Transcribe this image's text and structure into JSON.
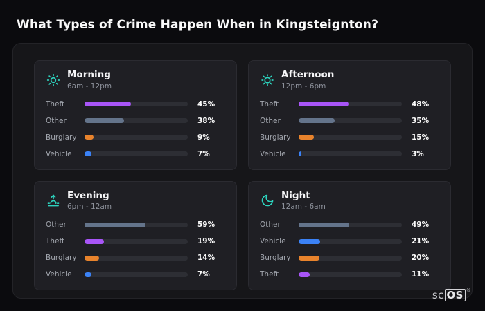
{
  "page_title": "What Types of Crime Happen When in Kingsteignton?",
  "logo": {
    "prefix": "sc",
    "box": "OS",
    "registered": "®"
  },
  "accent": {
    "icon_color": "#2dd4bf"
  },
  "chart_data": [
    {
      "type": "bar",
      "orientation": "horizontal",
      "title": "Morning",
      "subtitle": "6am - 12pm",
      "icon": "sun-rays-icon",
      "categories": [
        "Theft",
        "Other",
        "Burglary",
        "Vehicle"
      ],
      "values": [
        45,
        38,
        9,
        7
      ],
      "labels": [
        "45%",
        "38%",
        "9%",
        "7%"
      ],
      "colors": [
        "#a855f7",
        "#64748b",
        "#e8832c",
        "#3b82f6"
      ],
      "xlim": [
        0,
        100
      ],
      "unit": "%"
    },
    {
      "type": "bar",
      "orientation": "horizontal",
      "title": "Afternoon",
      "subtitle": "12pm - 6pm",
      "icon": "sun-icon",
      "categories": [
        "Theft",
        "Other",
        "Burglary",
        "Vehicle"
      ],
      "values": [
        48,
        35,
        15,
        3
      ],
      "labels": [
        "48%",
        "35%",
        "15%",
        "3%"
      ],
      "colors": [
        "#a855f7",
        "#64748b",
        "#e8832c",
        "#3b82f6"
      ],
      "xlim": [
        0,
        100
      ],
      "unit": "%"
    },
    {
      "type": "bar",
      "orientation": "horizontal",
      "title": "Evening",
      "subtitle": "6pm - 12am",
      "icon": "sunset-icon",
      "categories": [
        "Other",
        "Theft",
        "Burglary",
        "Vehicle"
      ],
      "values": [
        59,
        19,
        14,
        7
      ],
      "labels": [
        "59%",
        "19%",
        "14%",
        "7%"
      ],
      "colors": [
        "#64748b",
        "#a855f7",
        "#e8832c",
        "#3b82f6"
      ],
      "xlim": [
        0,
        100
      ],
      "unit": "%"
    },
    {
      "type": "bar",
      "orientation": "horizontal",
      "title": "Night",
      "subtitle": "12am - 6am",
      "icon": "moon-icon",
      "categories": [
        "Other",
        "Vehicle",
        "Burglary",
        "Theft"
      ],
      "values": [
        49,
        21,
        20,
        11
      ],
      "labels": [
        "49%",
        "21%",
        "20%",
        "11%"
      ],
      "colors": [
        "#64748b",
        "#3b82f6",
        "#e8832c",
        "#a855f7"
      ],
      "xlim": [
        0,
        100
      ],
      "unit": "%"
    }
  ]
}
